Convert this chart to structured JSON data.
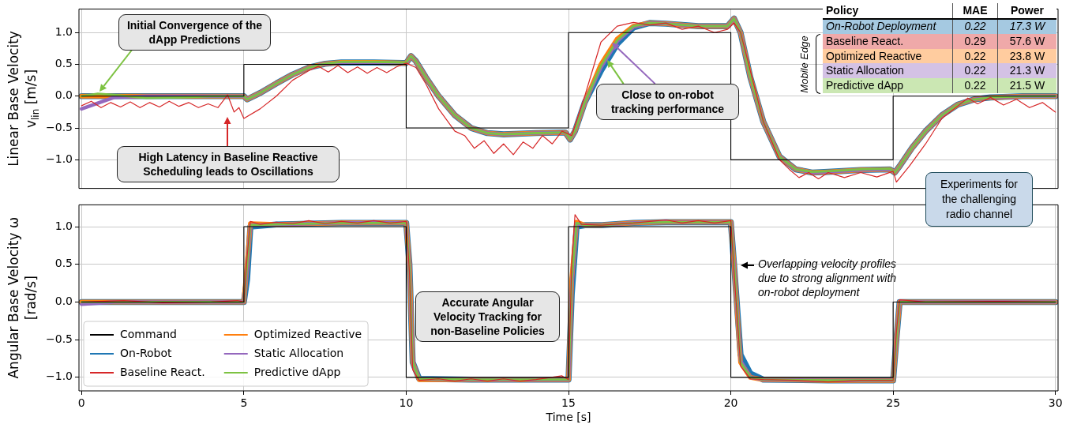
{
  "chart_data": [
    {
      "type": "line",
      "ylabel": "Linear Base Velocity v$_{lin}$ [m/s]",
      "xlim": [
        -0.08,
        30.08
      ],
      "xticks": [
        0,
        5,
        10,
        15,
        20,
        25,
        30
      ],
      "ylim": [
        -1.45,
        1.37
      ],
      "yticks": [
        {
          "value": -1,
          "label": "−1.0"
        },
        {
          "value": -0.5,
          "label": "−0.5"
        },
        {
          "value": 0,
          "label": "0.0"
        },
        {
          "value": 0.5,
          "label": "0.5"
        },
        {
          "value": 1,
          "label": "1.0"
        }
      ],
      "tick_labels": "y",
      "grid": true,
      "legend": false,
      "marker": "none",
      "annotations": [
        "Initial Convergence of the dApp Predictions",
        "High Latency in Baseline Reactive Scheduling leads to Oscillations",
        {
          "text": "Close to on-robot tracking performance",
          "x": 16.2,
          "y": 0.57
        },
        "Experiments for the challenging radio channel"
      ],
      "series": [
        {
          "color": "#000000",
          "x": [
            0,
            5,
            5,
            10,
            10,
            15,
            15,
            20,
            20,
            25,
            25,
            30
          ],
          "values": [
            0,
            0,
            0.5,
            0.5,
            -0.5,
            -0.5,
            1,
            1,
            -1,
            -1,
            0,
            0
          ]
        },
        {
          "color": "#1f77b4",
          "x": [
            0,
            1,
            2,
            3,
            4,
            5,
            5.1,
            5.5,
            6,
            6.5,
            7,
            7.5,
            8,
            9,
            10,
            10.15,
            10.3,
            10.6,
            11,
            11.5,
            12,
            12.5,
            13,
            14,
            14.9,
            15.05,
            15.2,
            15.5,
            16,
            16.5,
            17,
            17.5,
            18,
            19,
            19.9,
            20.1,
            20.3,
            20.6,
            21,
            21.5,
            22,
            22.5,
            23,
            24,
            24.9,
            25.05,
            25.2,
            25.6,
            26,
            26.5,
            27,
            27.5,
            28,
            29,
            30
          ],
          "values": [
            0,
            0,
            0,
            0,
            0,
            0,
            -0.05,
            0.05,
            0.2,
            0.34,
            0.45,
            0.51,
            0.53,
            0.53,
            0.52,
            0.63,
            0.55,
            0.3,
            0,
            -0.3,
            -0.5,
            -0.58,
            -0.6,
            -0.58,
            -0.57,
            -0.68,
            -0.55,
            -0.1,
            0.4,
            0.82,
            1.08,
            1.15,
            1.14,
            1.1,
            1.1,
            1.22,
            1.0,
            0.3,
            -0.4,
            -0.95,
            -1.15,
            -1.2,
            -1.19,
            -1.16,
            -1.15,
            -1.2,
            -1.1,
            -0.8,
            -0.55,
            -0.3,
            -0.13,
            -0.05,
            -0.02,
            0,
            0
          ]
        },
        {
          "color": "#d62728",
          "x": [
            0,
            0.3,
            0.6,
            0.9,
            1.2,
            1.5,
            1.8,
            2.1,
            2.4,
            2.7,
            3,
            3.3,
            3.6,
            3.9,
            4.2,
            4.5,
            4.7,
            4.85,
            5,
            5.5,
            6,
            6.5,
            7,
            7.3,
            7.6,
            7.9,
            8.2,
            8.5,
            8.8,
            9.1,
            9.4,
            9.7,
            10,
            10.3,
            10.6,
            11,
            11.5,
            11.8,
            12.1,
            12.4,
            12.7,
            13,
            13.3,
            13.6,
            13.9,
            14.2,
            14.5,
            14.8,
            15.1,
            15.5,
            16,
            16.5,
            17,
            17.5,
            18,
            18.5,
            19,
            19.5,
            19.9,
            20.1,
            20.3,
            20.7,
            21,
            21.5,
            21.8,
            22.1,
            22.4,
            22.7,
            23,
            23.5,
            24,
            24.5,
            25,
            25.1,
            25.5,
            26,
            26.5,
            27,
            27.3,
            27.6,
            28,
            28.4,
            28.8,
            29.2,
            29.6,
            30
          ],
          "values": [
            -0.15,
            -0.08,
            -0.18,
            -0.1,
            -0.17,
            -0.09,
            -0.18,
            -0.1,
            -0.17,
            -0.08,
            -0.16,
            -0.1,
            -0.18,
            -0.12,
            -0.18,
            0.02,
            -0.25,
            -0.18,
            -0.35,
            -0.2,
            0,
            0.25,
            0.4,
            0.47,
            0.38,
            0.48,
            0.37,
            0.46,
            0.36,
            0.45,
            0.37,
            0.46,
            0.52,
            0.45,
            0.2,
            -0.2,
            -0.55,
            -0.62,
            -0.82,
            -0.7,
            -0.9,
            -0.75,
            -0.92,
            -0.72,
            -0.82,
            -0.62,
            -0.75,
            -0.55,
            -0.62,
            0,
            0.85,
            1.1,
            1.16,
            1.12,
            1.15,
            1.05,
            1.1,
            1,
            1.05,
            1.15,
            1,
            0.2,
            -0.4,
            -1,
            -1.15,
            -1.28,
            -1.2,
            -1.3,
            -1.2,
            -1.28,
            -1.2,
            -1.27,
            -1.18,
            -1.35,
            -1.1,
            -0.75,
            -0.35,
            -0.15,
            -0.03,
            -0.12,
            -0.02,
            -0.14,
            -0.05,
            -0.18,
            -0.1,
            -0.25
          ]
        },
        {
          "color": "#ff7f0e",
          "x": [
            0,
            1,
            2,
            3,
            4,
            5,
            5.1,
            5.5,
            6,
            6.5,
            7,
            7.5,
            8,
            9,
            10,
            10.15,
            10.3,
            10.6,
            11,
            11.5,
            12,
            12.5,
            13,
            14,
            14.9,
            15.05,
            15.2,
            15.5,
            16,
            16.5,
            17,
            17.5,
            18,
            19,
            19.9,
            20.1,
            20.3,
            20.6,
            21,
            21.5,
            22,
            22.5,
            23,
            24,
            24.9,
            25.05,
            25.2,
            25.6,
            26,
            26.5,
            27,
            27.5,
            28,
            29,
            30
          ],
          "values": [
            0,
            0,
            0,
            0,
            0,
            0,
            -0.05,
            0.05,
            0.2,
            0.34,
            0.45,
            0.51,
            0.53,
            0.53,
            0.52,
            0.63,
            0.55,
            0.3,
            0,
            -0.3,
            -0.5,
            -0.58,
            -0.6,
            -0.58,
            -0.57,
            -0.68,
            -0.55,
            -0.1,
            0.5,
            0.9,
            1.1,
            1.15,
            1.14,
            1.1,
            1.1,
            1.22,
            1.0,
            0.3,
            -0.4,
            -0.95,
            -1.15,
            -1.2,
            -1.19,
            -1.16,
            -1.15,
            -1.2,
            -1.1,
            -0.8,
            -0.55,
            -0.3,
            -0.13,
            -0.05,
            -0.02,
            0,
            0
          ]
        },
        {
          "color": "#9467bd",
          "x": [
            0,
            1,
            2,
            3,
            4,
            5,
            5.1,
            5.5,
            6,
            6.5,
            7,
            7.5,
            8,
            9,
            10,
            10.15,
            10.3,
            10.6,
            11,
            11.5,
            12,
            12.5,
            13,
            14,
            14.9,
            15.05,
            15.2,
            15.5,
            16,
            16.5,
            17,
            17.5,
            18,
            19,
            19.9,
            20.1,
            20.3,
            20.6,
            21,
            21.5,
            22,
            22.5,
            23,
            24,
            24.9,
            25.05,
            25.2,
            25.6,
            26,
            26.5,
            27,
            27.5,
            28,
            29,
            30
          ],
          "values": [
            -0.2,
            -0.02,
            0,
            0,
            0,
            0,
            -0.05,
            0.05,
            0.2,
            0.34,
            0.45,
            0.51,
            0.53,
            0.53,
            0.52,
            0.63,
            0.55,
            0.3,
            0,
            -0.3,
            -0.5,
            -0.58,
            -0.6,
            -0.58,
            -0.57,
            -0.68,
            -0.55,
            -0.1,
            0.45,
            0.86,
            1.09,
            1.15,
            1.14,
            1.1,
            1.1,
            1.22,
            1.0,
            0.3,
            -0.4,
            -0.95,
            -1.15,
            -1.2,
            -1.19,
            -1.16,
            -1.15,
            -1.2,
            -1.1,
            -0.8,
            -0.55,
            -0.3,
            -0.13,
            -0.05,
            -0.02,
            0,
            0
          ]
        },
        {
          "color": "#7dc242",
          "x": [
            0,
            0.5,
            1,
            2,
            3,
            4,
            5,
            5.1,
            5.5,
            6,
            6.5,
            7,
            7.5,
            8,
            9,
            10,
            10.15,
            10.3,
            10.6,
            11,
            11.5,
            12,
            12.5,
            13,
            14,
            14.9,
            15.05,
            15.2,
            15.5,
            16,
            16.5,
            17,
            17.5,
            18,
            19,
            19.9,
            20.1,
            20.3,
            20.6,
            21,
            21.5,
            22,
            22.5,
            23,
            24,
            24.9,
            25.05,
            25.2,
            25.6,
            26,
            26.5,
            27,
            27.5,
            28,
            29,
            30
          ],
          "values": [
            0,
            0.04,
            0.02,
            -0.03,
            -0.02,
            0,
            0,
            -0.05,
            0.05,
            0.2,
            0.34,
            0.45,
            0.51,
            0.54,
            0.54,
            0.53,
            0.63,
            0.55,
            0.3,
            0,
            -0.3,
            -0.5,
            -0.58,
            -0.6,
            -0.58,
            -0.57,
            -0.68,
            -0.55,
            -0.1,
            0.48,
            0.88,
            1.1,
            1.15,
            1.14,
            1.1,
            1.1,
            1.22,
            1.0,
            0.3,
            -0.4,
            -0.95,
            -1.15,
            -1.19,
            -1.18,
            -1.15,
            -1.14,
            -1.2,
            -1.1,
            -0.8,
            -0.55,
            -0.3,
            -0.13,
            -0.05,
            -0.02,
            0,
            0
          ]
        }
      ]
    },
    {
      "type": "line",
      "xlabel": "Time [s]",
      "ylabel": "Angular Base Velocity ω [rad/s]",
      "xlim": [
        -0.08,
        30.08
      ],
      "xticks": [
        0,
        5,
        10,
        15,
        20,
        25,
        30
      ],
      "ylim": [
        -1.18,
        1.29
      ],
      "yticks": [
        {
          "value": -1,
          "label": "−1.0"
        },
        {
          "value": -0.5,
          "label": "−0.5"
        },
        {
          "value": 0,
          "label": "0.0"
        },
        {
          "value": 0.5,
          "label": "0.5"
        },
        {
          "value": 1,
          "label": "1.0"
        }
      ],
      "grid": true,
      "legend": "bottom left",
      "marker": "none",
      "annotations": [
        "Accurate Angular Velocity Tracking for non-Baseline Policies",
        "Overlapping velocity profiles due to strong alignment with on-robot deployment"
      ],
      "series": [
        {
          "name": "Command",
          "color": "#000000",
          "x": [
            0,
            5,
            5,
            10,
            10,
            15,
            15,
            20,
            20,
            25,
            25,
            30
          ],
          "values": [
            0,
            0,
            1,
            1,
            -1,
            -1,
            1,
            1,
            -1,
            -1,
            0,
            0
          ]
        },
        {
          "name": "On-Robot",
          "color": "#1f77b4",
          "x": [
            0,
            1,
            2,
            3,
            4,
            5,
            5.1,
            5.2,
            6,
            8,
            10,
            10.1,
            10.2,
            10.4,
            12,
            15,
            15.1,
            15.25,
            15.5,
            16,
            17,
            18,
            20,
            20.1,
            20.3,
            20.6,
            21,
            23,
            25,
            25.1,
            25.2,
            26,
            28,
            30
          ],
          "values": [
            0,
            0,
            0,
            0,
            0,
            0,
            0.3,
            1.0,
            1.03,
            1.05,
            1.05,
            0.5,
            -0.8,
            -1.02,
            -1.03,
            -1.03,
            0.1,
            1.0,
            1.02,
            1.02,
            1.05,
            1.06,
            1.06,
            0.5,
            -0.7,
            -0.95,
            -1.03,
            -1.04,
            -1.04,
            -0.5,
            0,
            0,
            0,
            0
          ]
        },
        {
          "name": "Baseline React.",
          "color": "#d62728",
          "x": [
            0,
            1.3,
            2.5,
            4,
            4.8,
            5,
            5.1,
            5.2,
            5.5,
            6,
            6.5,
            7,
            7.5,
            8,
            8.5,
            9,
            9.5,
            10,
            10.1,
            10.2,
            10.4,
            11,
            11.5,
            12,
            12.5,
            13,
            13.5,
            14,
            14.8,
            15,
            15.1,
            15.2,
            15.4,
            16,
            17,
            18,
            18.5,
            19,
            19.5,
            20,
            20.1,
            20.3,
            20.6,
            21,
            22,
            23,
            24,
            25,
            25.1,
            25.2,
            26,
            28,
            30
          ],
          "values": [
            0,
            0.02,
            -0.01,
            0,
            0.02,
            0,
            0.6,
            1.07,
            1.03,
            1.06,
            1.04,
            1.08,
            1.04,
            1.07,
            1.05,
            1.08,
            1.05,
            1.07,
            0.4,
            -0.9,
            -1.04,
            -1.02,
            -1.05,
            -1.02,
            -1.05,
            -1.02,
            -1.05,
            -1.03,
            -0.98,
            -1.03,
            0.5,
            1.16,
            1.03,
            1.02,
            1.05,
            1.09,
            1.05,
            1.08,
            1.05,
            1.08,
            0.4,
            -0.85,
            -1.02,
            -1.03,
            -1.04,
            -1.06,
            -1.04,
            -1.04,
            -0.4,
            0.03,
            0,
            0.01,
            0
          ]
        },
        {
          "name": "Optimized Reactive",
          "color": "#ff7f0e",
          "x": [
            0,
            1,
            2,
            3,
            4,
            5,
            5.1,
            5.2,
            6,
            8,
            10,
            10.1,
            10.2,
            10.4,
            12,
            15,
            15.1,
            15.25,
            15.5,
            16,
            17,
            18,
            20,
            20.1,
            20.3,
            20.6,
            21,
            23,
            25,
            25.1,
            25.2,
            26,
            28,
            30
          ],
          "values": [
            0,
            0,
            0,
            0,
            0,
            0,
            0.5,
            1.04,
            1.03,
            1.05,
            1.05,
            0.5,
            -0.8,
            -1.03,
            -1.03,
            -1.03,
            0.3,
            1.06,
            1.02,
            1.02,
            1.05,
            1.06,
            1.06,
            0.5,
            -0.8,
            -1.0,
            -1.03,
            -1.04,
            -1.04,
            -0.5,
            0,
            0,
            0,
            0
          ]
        },
        {
          "name": "Static Allocation",
          "color": "#9467bd",
          "x": [
            0,
            1,
            2,
            3,
            4,
            5,
            5.1,
            5.2,
            6,
            8,
            10,
            10.1,
            10.2,
            10.4,
            12,
            15,
            15.1,
            15.25,
            15.5,
            16,
            17,
            18,
            20,
            20.1,
            20.3,
            20.6,
            21,
            23,
            25,
            25.1,
            25.2,
            26,
            28,
            30
          ],
          "values": [
            -0.03,
            0,
            0,
            0,
            0,
            0,
            0.45,
            1.02,
            1.03,
            1.05,
            1.05,
            0.5,
            -0.8,
            -1.02,
            -1.03,
            -1.03,
            0.25,
            1.04,
            1.02,
            1.02,
            1.05,
            1.06,
            1.06,
            0.5,
            -0.78,
            -1.0,
            -1.03,
            -1.04,
            -1.04,
            -0.5,
            0,
            0,
            0,
            0
          ]
        },
        {
          "name": "Predictive dApp",
          "color": "#7dc242",
          "x": [
            0,
            1,
            2,
            3,
            4,
            5,
            5.1,
            5.2,
            6,
            8,
            10,
            10.1,
            10.2,
            10.4,
            12,
            15,
            15.1,
            15.25,
            15.5,
            16,
            17,
            18,
            20,
            20.1,
            20.3,
            20.6,
            21,
            23,
            25,
            25.1,
            25.2,
            26,
            28,
            30
          ],
          "values": [
            0,
            0,
            0,
            0,
            0,
            0,
            0.5,
            1.02,
            1.03,
            1.05,
            1.05,
            0.5,
            -0.8,
            -1.02,
            -1.03,
            -1.03,
            0.3,
            1.05,
            1.02,
            1.02,
            1.05,
            1.06,
            1.06,
            0.5,
            -0.8,
            -1.0,
            -1.03,
            -1.04,
            -1.04,
            -0.5,
            0,
            0,
            0,
            0
          ]
        }
      ]
    },
    {
      "type": "other",
      "annotations": [
        "Policy",
        "MAE",
        "Power",
        "On-Robot Deployment",
        "0.22",
        "17.3 W",
        "Baseline React.",
        "0.29",
        "57.6 W",
        "Optimized Reactive",
        "0.22",
        "23.8 W",
        "Static Allocation",
        "0.22",
        "21.3 W",
        "Predictive dApp",
        "0.22",
        "21.5 W",
        "Mobile Edge"
      ]
    }
  ]
}
